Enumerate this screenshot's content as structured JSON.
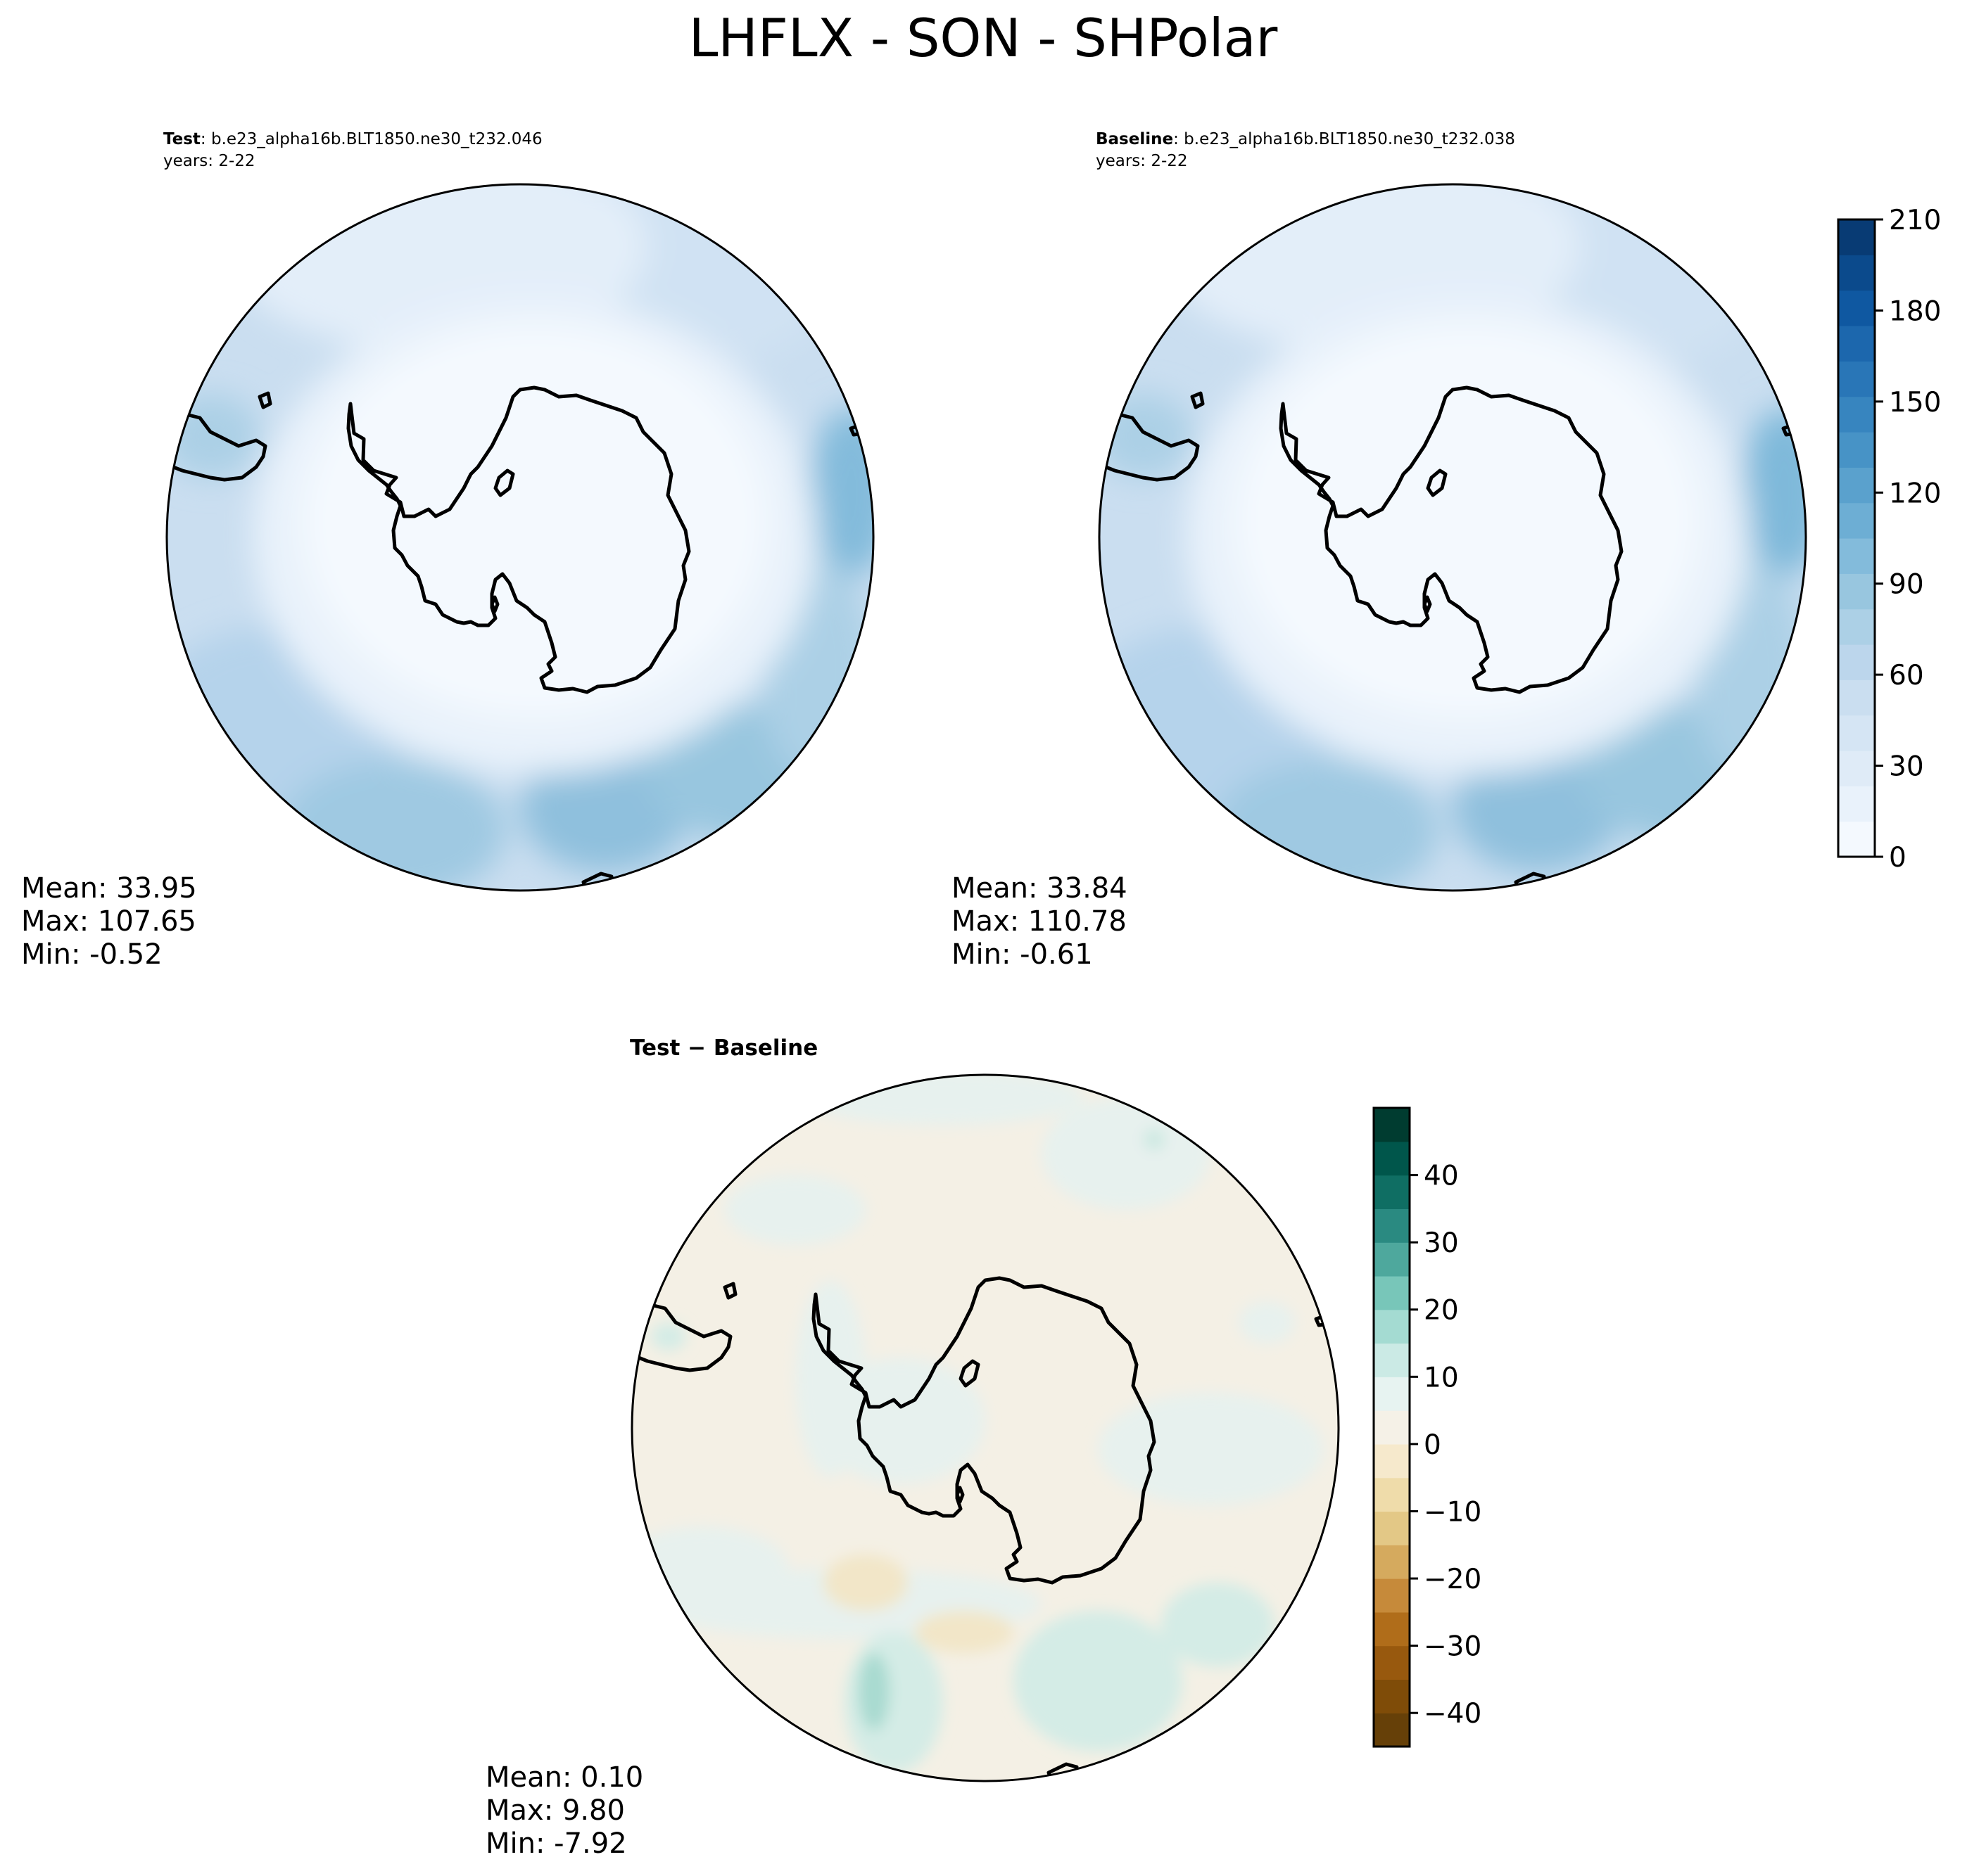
{
  "title": "LHFLX - SON - SHPolar",
  "panels": {
    "test": {
      "label_bold": "Test",
      "case": ": b.e23_alpha16b.BLT1850.ne30_t232.046",
      "years": "years: 2-22",
      "mean": "Mean: 33.95",
      "max": "Max: 107.65",
      "min": "Min: -0.52"
    },
    "baseline": {
      "label_bold": "Baseline",
      "case": ": b.e23_alpha16b.BLT1850.ne30_t232.038",
      "years": "years: 2-22",
      "mean": "Mean: 33.84",
      "max": "Max: 110.78",
      "min": "Min: -0.61"
    },
    "diff": {
      "label": "Test − Baseline",
      "mean": "Mean:  0.10",
      "max": "Max:  9.80",
      "min": "Min: -7.92"
    }
  },
  "colorbars": {
    "top": {
      "ticks": [
        "0",
        "30",
        "60",
        "90",
        "120",
        "150",
        "180",
        "210"
      ],
      "colors": [
        "#f4f9fe",
        "#e9f2fb",
        "#dfebf7",
        "#d5e5f4",
        "#cadef0",
        "#bcd6ec",
        "#acd0e6",
        "#98c6df",
        "#83bbdb",
        "#6daed4",
        "#5aa1cd",
        "#4793c6",
        "#3785bf",
        "#2976b7",
        "#1c67ad",
        "#0f58a1",
        "#0b4a8c",
        "#083b74"
      ]
    },
    "bottom": {
      "ticks": [
        "40",
        "30",
        "20",
        "10",
        "0",
        "−10",
        "−20",
        "−30",
        "−40"
      ],
      "colors": [
        "#664008",
        "#7f4c08",
        "#98590e",
        "#b06d1a",
        "#c68a3a",
        "#d5aa5e",
        "#e3c886",
        "#efdcaa",
        "#f6e9cc",
        "#f5f1e7",
        "#e7f3f1",
        "#cbeae5",
        "#a4dbd2",
        "#78c6b9",
        "#4ea89d",
        "#2a8a81",
        "#0f6e63",
        "#00564b",
        "#003c30"
      ]
    }
  }
}
